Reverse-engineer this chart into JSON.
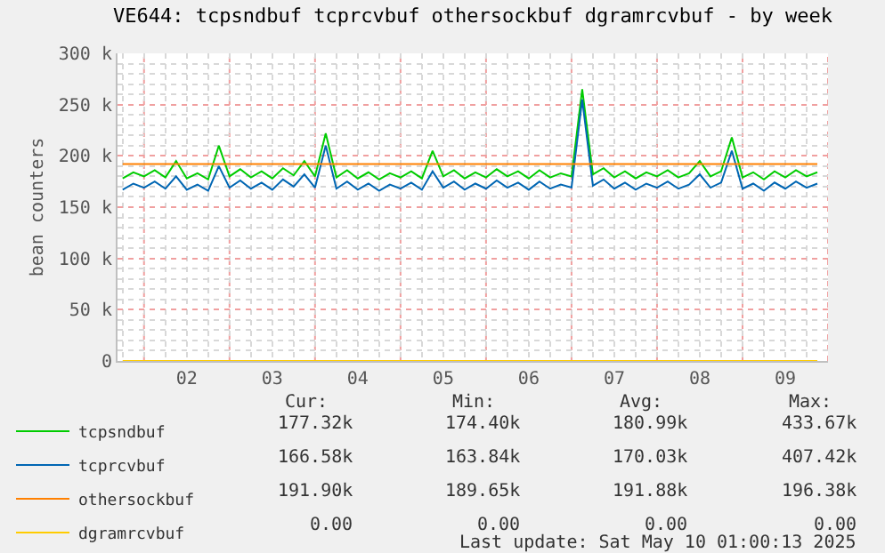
{
  "chart_data": {
    "type": "line",
    "title": "VE644: tcpsndbuf tcprcvbuf othersockbuf dgramrcvbuf - by week",
    "ylabel": "bean counters",
    "x": [
      1.75,
      1.875,
      2,
      2.125,
      2.25,
      2.375,
      2.5,
      2.625,
      2.75,
      2.875,
      3,
      3.125,
      3.25,
      3.375,
      3.5,
      3.625,
      3.75,
      3.875,
      4,
      4.125,
      4.25,
      4.375,
      4.5,
      4.625,
      4.75,
      4.875,
      5,
      5.125,
      5.25,
      5.375,
      5.5,
      5.625,
      5.75,
      5.875,
      6,
      6.125,
      6.25,
      6.375,
      6.5,
      6.625,
      6.75,
      6.875,
      7,
      7.125,
      7.25,
      7.375,
      7.5,
      7.625,
      7.75,
      7.875,
      8,
      8.125,
      8.25,
      8.375,
      8.5,
      8.625,
      8.75,
      8.875,
      9,
      9.125,
      9.25,
      9.375,
      9.5,
      9.625,
      9.75,
      9.875
    ],
    "series": [
      {
        "name": "tcpsndbuf",
        "color": "#00cc00",
        "values": [
          178000,
          184000,
          180000,
          186000,
          179000,
          195000,
          178000,
          183000,
          177000,
          210000,
          180000,
          187000,
          179000,
          185000,
          178000,
          188000,
          181000,
          195000,
          180000,
          222000,
          179000,
          186000,
          178000,
          184000,
          177000,
          183000,
          179000,
          185000,
          178000,
          205000,
          180000,
          186000,
          178000,
          184000,
          179000,
          187000,
          180000,
          185000,
          178000,
          186000,
          179000,
          183000,
          180000,
          265000,
          182000,
          188000,
          179000,
          185000,
          178000,
          184000,
          180000,
          186000,
          179000,
          183000,
          195000,
          180000,
          185000,
          218000,
          179000,
          184000,
          177000,
          185000,
          179000,
          186000,
          180000,
          184000
        ]
      },
      {
        "name": "tcprcvbuf",
        "color": "#0066b3",
        "values": [
          167000,
          173000,
          169000,
          175000,
          168000,
          180000,
          167000,
          172000,
          166000,
          190000,
          169000,
          176000,
          168000,
          174000,
          167000,
          177000,
          170000,
          182000,
          169000,
          210000,
          168000,
          175000,
          167000,
          173000,
          166000,
          172000,
          168000,
          174000,
          167000,
          185000,
          169000,
          175000,
          167000,
          173000,
          168000,
          176000,
          169000,
          174000,
          167000,
          175000,
          168000,
          172000,
          169000,
          255000,
          171000,
          177000,
          168000,
          174000,
          167000,
          173000,
          169000,
          175000,
          168000,
          172000,
          182000,
          169000,
          174000,
          205000,
          168000,
          173000,
          166000,
          174000,
          168000,
          175000,
          169000,
          173000
        ]
      },
      {
        "name": "othersockbuf",
        "color": "#ff8000",
        "values": [
          192000,
          192000,
          192000,
          192000,
          192000,
          192000,
          192000,
          192000,
          192000,
          192000,
          192000,
          192000,
          192000,
          192000,
          192000,
          192000,
          192000,
          192000,
          192000,
          192000,
          192000,
          192000,
          192000,
          192000,
          192000,
          192000,
          192000,
          192000,
          192000,
          192000,
          192000,
          192000,
          192000,
          192000,
          192000,
          192000,
          192000,
          192000,
          192000,
          192000,
          192000,
          192000,
          192000,
          192000,
          192000,
          192000,
          192000,
          192000,
          192000,
          192000,
          192000,
          192000,
          192000,
          192000,
          192000,
          192000,
          192000,
          192000,
          192000,
          192000,
          192000,
          192000,
          192000,
          192000,
          192000,
          192000
        ]
      },
      {
        "name": "dgramrcvbuf",
        "color": "#ffcc00",
        "values": [
          0,
          0,
          0,
          0,
          0,
          0,
          0,
          0,
          0,
          0,
          0,
          0,
          0,
          0,
          0,
          0,
          0,
          0,
          0,
          0,
          0,
          0,
          0,
          0,
          0,
          0,
          0,
          0,
          0,
          0,
          0,
          0,
          0,
          0,
          0,
          0,
          0,
          0,
          0,
          0,
          0,
          0,
          0,
          0,
          0,
          0,
          0,
          0,
          0,
          0,
          0,
          0,
          0,
          0,
          0,
          0,
          0,
          0,
          0,
          0,
          0,
          0,
          0,
          0,
          0,
          0
        ]
      }
    ],
    "xlim": [
      1.69,
      10.0
    ],
    "xticks": [
      {
        "value": 2,
        "label": null
      },
      {
        "value": 2.5,
        "label": "02"
      },
      {
        "value": 3,
        "label": null
      },
      {
        "value": 3.5,
        "label": "03"
      },
      {
        "value": 4,
        "label": null
      },
      {
        "value": 4.5,
        "label": "04"
      },
      {
        "value": 5,
        "label": null
      },
      {
        "value": 5.5,
        "label": "05"
      },
      {
        "value": 6,
        "label": null
      },
      {
        "value": 6.5,
        "label": "06"
      },
      {
        "value": 7,
        "label": null
      },
      {
        "value": 7.5,
        "label": "07"
      },
      {
        "value": 8,
        "label": null
      },
      {
        "value": 8.5,
        "label": "08"
      },
      {
        "value": 9,
        "label": null
      },
      {
        "value": 9.5,
        "label": "09"
      },
      {
        "value": 10,
        "label": null
      }
    ],
    "ylim": [
      0,
      300000
    ],
    "yticks": [
      {
        "value": 0,
        "label": "0"
      },
      {
        "value": 50000,
        "label": "50 k"
      },
      {
        "value": 100000,
        "label": "100 k"
      },
      {
        "value": 150000,
        "label": "150 k"
      },
      {
        "value": 200000,
        "label": "200 k"
      },
      {
        "value": 250000,
        "label": "250 k"
      },
      {
        "value": 300000,
        "label": "300 k"
      }
    ],
    "grid": true,
    "legend": "bottom left",
    "annotations": [
      "Cur:",
      "Min:",
      "Avg:",
      "Max:",
      "177.32k",
      "174.40k",
      "180.99k",
      "433.67k",
      "166.58k",
      "163.84k",
      "170.03k",
      "407.42k",
      "191.90k",
      "189.65k",
      "191.88k",
      "196.38k",
      "0.00",
      "0.00",
      "0.00",
      "0.00",
      "Last update: Sat May 10 01:00:13 2025"
    ]
  }
}
